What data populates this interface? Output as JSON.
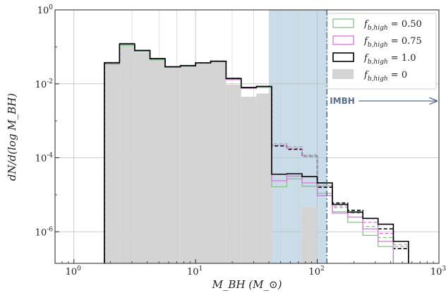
{
  "chart_data": {
    "type": "histogram",
    "title": "",
    "xlabel": "M_BH (M_⊙)",
    "ylabel": "dN/d(log M_BH)",
    "xscale": "log",
    "yscale": "log",
    "xlim": [
      0.7,
      1000
    ],
    "ylim": [
      1.4e-07,
      1
    ],
    "grid": true,
    "legend_position": "top-right",
    "x_ticks": [
      {
        "value": 1,
        "base": "10",
        "exp": "0"
      },
      {
        "value": 10,
        "base": "10",
        "exp": "1"
      },
      {
        "value": 100,
        "base": "10",
        "exp": "2"
      },
      {
        "value": 1000,
        "base": "10",
        "exp": "3"
      }
    ],
    "y_ticks": [
      {
        "value": 1,
        "base": "10",
        "exp": "0"
      },
      {
        "value": 0.01,
        "base": "10",
        "exp": "-2"
      },
      {
        "value": 0.0001,
        "base": "10",
        "exp": "-4"
      },
      {
        "value": 1e-06,
        "base": "10",
        "exp": "-6"
      }
    ],
    "shaded_region": {
      "x0": 40,
      "x1": 120,
      "color": "#c9dce8"
    },
    "vline": {
      "x": 120,
      "color": "#3f5f86",
      "style": "dashdot"
    },
    "annotation": {
      "text": "IMBH",
      "arrow_from": 120,
      "arrow_to": 1000,
      "color": "#5a6e86"
    },
    "bin_edges": [
      1.78,
      2.37,
      3.16,
      4.22,
      5.62,
      7.5,
      10.0,
      13.3,
      17.8,
      23.7,
      31.6,
      42.2,
      56.2,
      75.0,
      100.0,
      133.0,
      178.0,
      237.0,
      316.0,
      422.0,
      562.0
    ],
    "series": [
      {
        "name": "f_b,high = 0",
        "style": "filled",
        "color": "#d4d4d4",
        "values": [
          0.04,
          0.13,
          0.07,
          0.05,
          0.03,
          0.032,
          0.038,
          0.04,
          0.0095,
          0.0045,
          0.0055,
          0,
          0,
          4.5e-06,
          0,
          0,
          0,
          0,
          0,
          0
        ]
      },
      {
        "name": "f_b,high = 0.50",
        "style": "step",
        "color": "#88c08a",
        "values": [
          0.034,
          0.11,
          0.075,
          0.045,
          0.028,
          0.03,
          0.036,
          0.04,
          0.013,
          0.0075,
          0.008,
          1.65e-05,
          2.7e-05,
          1.7e-05,
          1.1e-05,
          3.5e-06,
          1.8e-06,
          8e-07,
          4e-07,
          0
        ]
      },
      {
        "name": "f_b,high = 0.75",
        "style": "step",
        "color": "#e070e0",
        "values": [
          0.036,
          0.12,
          0.08,
          0.048,
          0.029,
          0.031,
          0.037,
          0.041,
          0.0135,
          0.0078,
          0.0082,
          2.4e-05,
          3.2e-05,
          2.1e-05,
          9.5e-06,
          3.2e-06,
          2.5e-06,
          1.2e-06,
          5.5e-07,
          0
        ]
      },
      {
        "name": "f_b,high = 1.0",
        "style": "step",
        "color": "#000000",
        "values": [
          0.037,
          0.12,
          0.08,
          0.048,
          0.029,
          0.031,
          0.037,
          0.041,
          0.014,
          0.008,
          0.0085,
          3.6e-05,
          3.7e-05,
          3.1e-05,
          2.1e-05,
          5.5e-06,
          3.4e-06,
          2.3e-06,
          1.6e-06,
          5.5e-07
        ]
      },
      {
        "name": "f_b,high = 1.0 (dashed)",
        "style": "dashed-step",
        "color": "#000000",
        "values": [
          0.037,
          0.12,
          0.08,
          0.048,
          0.029,
          0.031,
          0.037,
          0.041,
          0.014,
          0.008,
          0.0085,
          0.00021,
          0.00017,
          0.00011,
          1.6e-05,
          6e-06,
          3.8e-06,
          2.3e-06,
          1.2e-06,
          3.5e-07
        ]
      },
      {
        "name": "f_b,high = 0.50 (dashed)",
        "style": "dashed-step",
        "color": "#88c08a",
        "values": [
          0.034,
          0.11,
          0.075,
          0.045,
          0.028,
          0.03,
          0.036,
          0.04,
          0.013,
          0.0075,
          0.008,
          0.00024,
          0.0002,
          0.00012,
          1.8e-05,
          4.5e-06,
          3.2e-06,
          1.4e-06,
          7e-07,
          4.5e-07
        ]
      },
      {
        "name": "f_b,high = 0.75 (dashed)",
        "style": "dashed-step",
        "color": "#e070e0",
        "values": [
          0.036,
          0.12,
          0.08,
          0.048,
          0.029,
          0.031,
          0.037,
          0.041,
          0.0135,
          0.0078,
          0.0082,
          0.00022,
          0.00018,
          0.00011,
          1.7e-05,
          5e-06,
          3.5e-06,
          1.8e-06,
          9e-07,
          4e-07
        ]
      }
    ],
    "legend": [
      {
        "label_main": "f",
        "label_sub": "b,high",
        "label_value": " = 0.50",
        "color": "#88c08a",
        "style": "outline"
      },
      {
        "label_main": "f",
        "label_sub": "b,high",
        "label_value": " = 0.75",
        "color": "#e070e0",
        "style": "outline"
      },
      {
        "label_main": "f",
        "label_sub": "b,high",
        "label_value": " = 1.0",
        "color": "#000000",
        "style": "outline"
      },
      {
        "label_main": "f",
        "label_sub": "b,high",
        "label_value": " = 0",
        "color": "#d4d4d4",
        "style": "filled"
      }
    ]
  }
}
